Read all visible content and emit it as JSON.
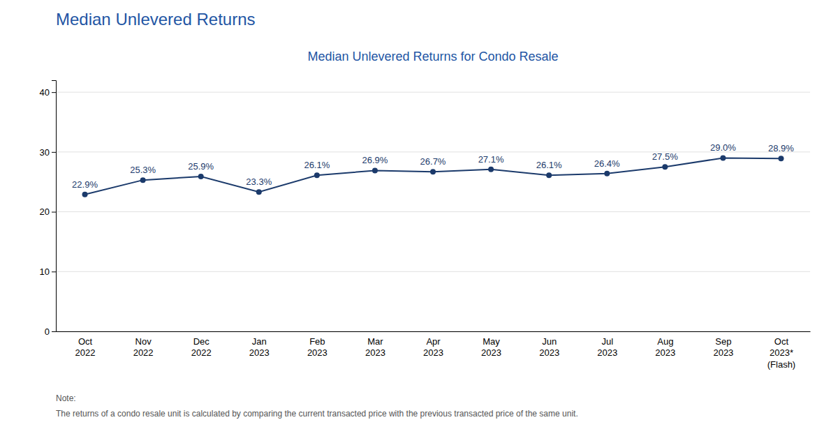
{
  "chart_data": {
    "type": "line",
    "title": "Median Unlevered Returns",
    "subtitle": "Median Unlevered Returns for Condo Resale",
    "categories": [
      "Oct\n2022",
      "Nov\n2022",
      "Dec\n2022",
      "Jan\n2023",
      "Feb\n2023",
      "Mar\n2023",
      "Apr\n2023",
      "May\n2023",
      "Jun\n2023",
      "Jul\n2023",
      "Aug\n2023",
      "Sep\n2023",
      "Oct\n2023*\n(Flash)"
    ],
    "values": [
      22.9,
      25.3,
      25.9,
      23.3,
      26.1,
      26.9,
      26.7,
      27.1,
      26.1,
      26.4,
      27.5,
      29.0,
      28.9
    ],
    "value_labels": [
      "22.9%",
      "25.3%",
      "25.9%",
      "23.3%",
      "26.1%",
      "26.9%",
      "26.7%",
      "27.1%",
      "26.1%",
      "26.4%",
      "27.5%",
      "29.0%",
      "28.9%"
    ],
    "data_labels": true,
    "color": "#1b3a6b",
    "ylim": [
      0,
      42
    ],
    "yticks": [
      0,
      10,
      20,
      30,
      40
    ],
    "grid": true,
    "annotations": [
      "Note:",
      "The returns of a condo resale unit is calculated by comparing the current transacted price with the previous transacted price of the same unit."
    ]
  }
}
